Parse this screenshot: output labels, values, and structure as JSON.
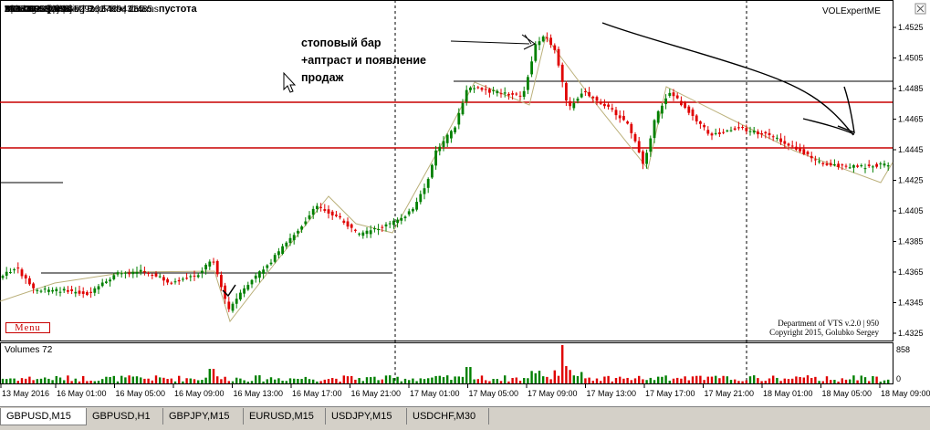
{
  "chart": {
    "symbol_title": "GBPUSD,M15",
    "info_lines": [
      "Message Line: GMT 3 | 5439431485",
      "STATUS: Receiving Real-time data...",
      "21/5/2016 | M | ---- | 0.027Kb | 265 ms",
      "D: 1.4605 [1038]",
      "S: 0.0000  [0]",
      "V|D: 19985 | -93",
      "A/D: 3022 | A/W: 5292"
    ],
    "info_suffix": "пустота",
    "annotation_lines": [
      "стоповый бар",
      "+аптраст и появление",
      "продаж"
    ],
    "brand_label": "VOLExpertME",
    "menu_label": "Menu",
    "copyright_lines": [
      "Department of VTS  v.2.0 | 950",
      "Copyright 2015, Golubko Sergey"
    ],
    "volume_label": "Volumes 72",
    "volume_axis": [
      "858",
      "0"
    ],
    "price_axis": [
      "1.4525",
      "1.4505",
      "1.4485",
      "1.4465",
      "1.4445",
      "1.4425",
      "1.4405",
      "1.4385",
      "1.4365",
      "1.4345",
      "1.4325"
    ],
    "time_axis": [
      "13 May 2016",
      "16 May 01:00",
      "16 May 05:00",
      "16 May 09:00",
      "16 May 13:00",
      "16 May 17:00",
      "16 May 21:00",
      "17 May 01:00",
      "17 May 05:00",
      "17 May 09:00",
      "17 May 13:00",
      "17 May 17:00",
      "17 May 21:00",
      "18 May 01:00",
      "18 May 05:00",
      "18 May 09:00"
    ],
    "colors": {
      "bull": "#008000",
      "bear": "#e00000",
      "level": "#c80000",
      "trend": "#bbb07a"
    }
  },
  "tabs": [
    {
      "label": "GBPUSD,M15",
      "active": true
    },
    {
      "label": "GBPUSD,H1",
      "active": false
    },
    {
      "label": "GBPJPY,M15",
      "active": false
    },
    {
      "label": "EURUSD,M15",
      "active": false
    },
    {
      "label": "USDJPY,M15",
      "active": false
    },
    {
      "label": "USDCHF,M30",
      "active": false
    }
  ]
}
